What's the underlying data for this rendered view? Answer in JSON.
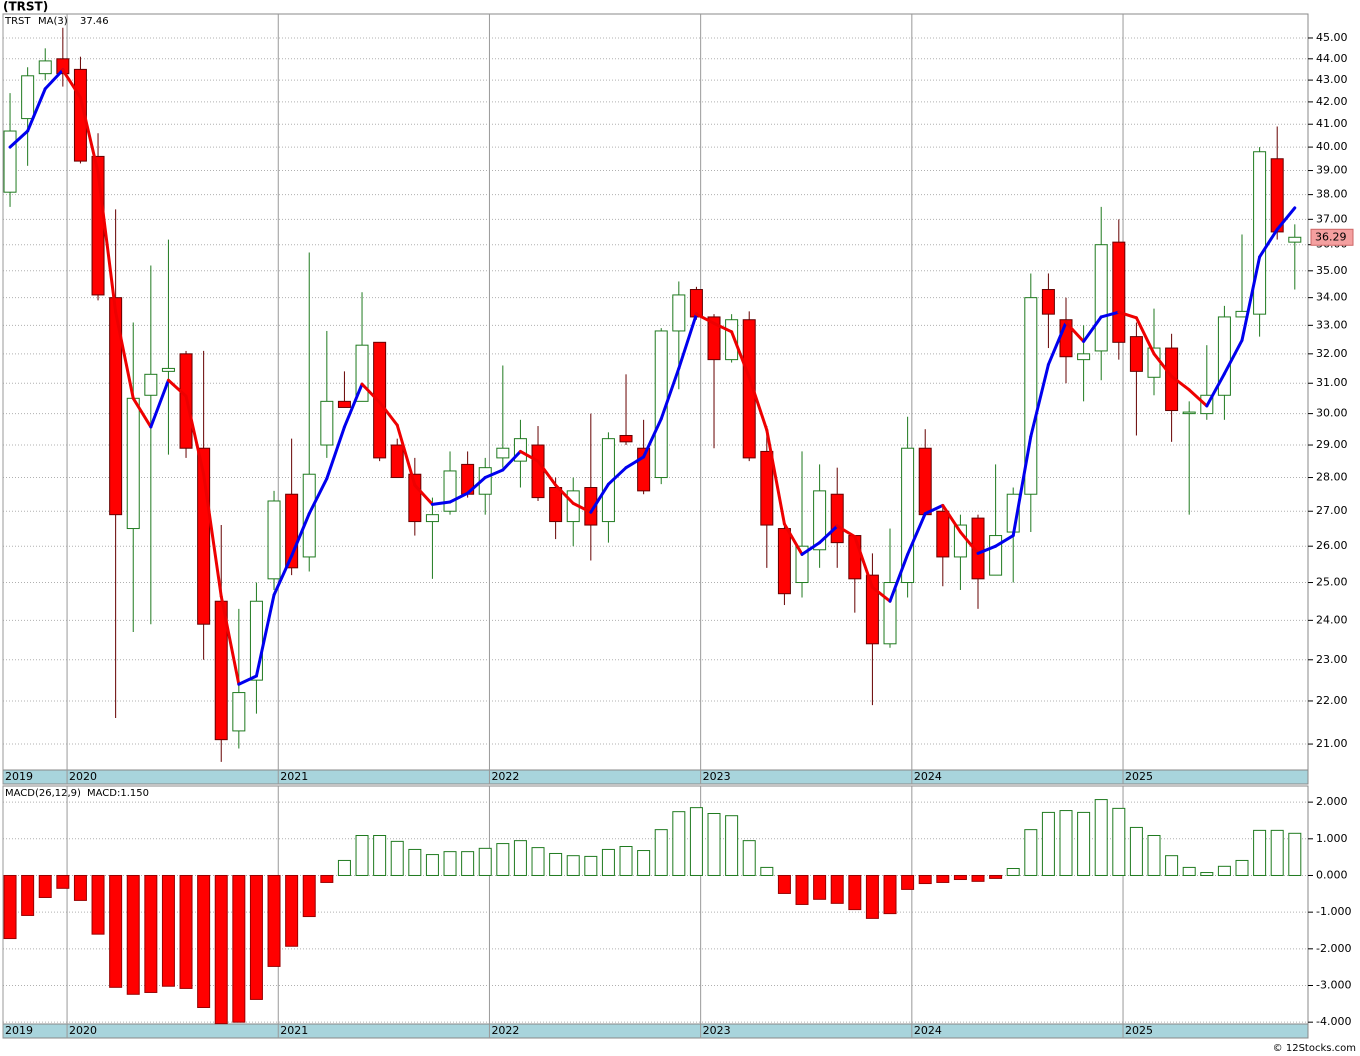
{
  "chart_data": [
    {
      "type": "candlestick",
      "title": "(TRST)",
      "legend_name": "TRST",
      "open": [
        38.1,
        41.25,
        43.3,
        44.0,
        43.5,
        39.6,
        34.0,
        26.5,
        30.6,
        31.4,
        32.0,
        28.9,
        24.5,
        21.3,
        22.5,
        25.1,
        27.5,
        25.7,
        29.0,
        30.4,
        30.4,
        32.4,
        29.0,
        28.1,
        26.7,
        27.0,
        28.4,
        27.5,
        28.6,
        28.5,
        29.0,
        27.7,
        26.7,
        27.7,
        26.7,
        29.3,
        28.9,
        28.0,
        32.8,
        34.3,
        33.3,
        31.8,
        33.2,
        28.8,
        26.5,
        25.0,
        25.9,
        27.5,
        26.3,
        25.2,
        23.4,
        25.0,
        28.9,
        27.0,
        25.7,
        26.8,
        25.2,
        26.4,
        27.5,
        34.3,
        33.2,
        31.8,
        32.1,
        36.1,
        32.6,
        31.2,
        32.2,
        30.0,
        30.0,
        30.6,
        33.3,
        33.4,
        39.5,
        36.1
      ],
      "high": [
        42.4,
        43.6,
        44.5,
        45.5,
        44.1,
        40.6,
        37.4,
        33.1,
        35.2,
        36.2,
        32.1,
        32.1,
        26.6,
        24.3,
        25.0,
        27.6,
        29.2,
        35.7,
        32.8,
        31.4,
        34.2,
        32.4,
        29.2,
        28.6,
        27.4,
        28.8,
        28.8,
        28.6,
        31.6,
        29.8,
        29.6,
        28.0,
        28.0,
        30.0,
        29.4,
        31.3,
        29.8,
        32.9,
        34.6,
        34.4,
        33.4,
        33.4,
        33.5,
        29.6,
        26.6,
        28.8,
        28.4,
        28.3,
        26.3,
        25.8,
        26.5,
        29.9,
        29.5,
        27.2,
        26.9,
        26.9,
        28.4,
        27.7,
        34.9,
        34.9,
        34.0,
        33.0,
        37.5,
        37.0,
        33.1,
        33.6,
        32.7,
        30.4,
        32.3,
        33.7,
        36.4,
        40.0,
        40.9,
        36.8
      ],
      "low": [
        37.5,
        39.2,
        43.0,
        42.7,
        39.3,
        33.9,
        21.6,
        23.7,
        23.9,
        28.7,
        28.6,
        23.0,
        20.6,
        20.9,
        21.7,
        24.8,
        25.2,
        25.3,
        28.6,
        30.2,
        30.4,
        28.5,
        28.0,
        26.3,
        25.1,
        26.9,
        27.4,
        26.9,
        28.3,
        27.7,
        27.3,
        26.2,
        26.0,
        25.6,
        26.1,
        29.0,
        27.5,
        27.8,
        30.8,
        33.2,
        28.9,
        31.7,
        28.5,
        25.4,
        24.4,
        24.6,
        25.4,
        25.4,
        24.2,
        21.9,
        23.3,
        24.6,
        26.9,
        24.9,
        24.8,
        24.3,
        25.2,
        25.0,
        26.4,
        32.2,
        31.0,
        30.4,
        31.1,
        31.8,
        29.3,
        30.6,
        29.1,
        26.9,
        29.8,
        29.8,
        33.3,
        32.6,
        36.2,
        34.3
      ],
      "close": [
        40.7,
        43.2,
        43.9,
        43.3,
        39.4,
        34.1,
        26.9,
        30.5,
        31.3,
        31.5,
        28.9,
        23.9,
        21.1,
        22.2,
        24.5,
        27.3,
        25.4,
        28.1,
        30.4,
        30.2,
        32.3,
        28.6,
        28.0,
        26.7,
        26.9,
        28.2,
        27.5,
        28.3,
        28.9,
        29.2,
        27.4,
        26.7,
        27.6,
        26.6,
        29.2,
        29.1,
        27.6,
        32.8,
        34.1,
        33.3,
        31.8,
        33.2,
        28.6,
        26.6,
        24.7,
        26.0,
        27.6,
        26.1,
        25.1,
        23.4,
        25.0,
        28.9,
        26.9,
        25.7,
        26.6,
        25.1,
        26.3,
        27.5,
        34.0,
        33.4,
        31.9,
        32.0,
        36.0,
        32.4,
        31.4,
        32.2,
        30.1,
        30.05,
        30.6,
        33.3,
        33.5,
        39.8,
        36.5,
        36.29
      ],
      "up_color": "#1f7a1f",
      "down_color": "#ff0000",
      "ma": {
        "name": "MA(3)",
        "up_color": "#0000ee",
        "down_color": "#ee0000",
        "values": [
          40.0,
          40.7,
          42.6,
          43.47,
          42.2,
          38.93,
          33.47,
          30.5,
          29.57,
          31.1,
          30.57,
          28.1,
          24.63,
          22.4,
          22.6,
          24.67,
          25.73,
          26.93,
          27.97,
          29.57,
          30.97,
          30.37,
          29.63,
          27.77,
          27.2,
          27.27,
          27.53,
          28.0,
          28.23,
          28.8,
          28.5,
          27.77,
          27.23,
          26.97,
          27.8,
          28.3,
          28.63,
          29.83,
          31.5,
          33.4,
          33.07,
          32.77,
          31.2,
          29.47,
          26.63,
          25.77,
          26.1,
          26.57,
          26.27,
          24.87,
          24.5,
          25.77,
          26.93,
          27.17,
          26.4,
          25.8,
          26.0,
          26.3,
          29.27,
          31.63,
          33.1,
          32.43,
          33.3,
          33.47,
          33.27,
          32.0,
          31.23,
          30.78,
          30.25,
          31.32,
          32.47,
          35.53,
          36.6,
          37.46
        ]
      },
      "log_scale": true,
      "grid": true,
      "ylim": [
        20.42,
        46.18
      ],
      "yticks": [
        {
          "value": 21,
          "label": "21.00"
        },
        {
          "value": 22,
          "label": "22.00"
        },
        {
          "value": 23,
          "label": "23.00"
        },
        {
          "value": 24,
          "label": "24.00"
        },
        {
          "value": 25,
          "label": "25.00"
        },
        {
          "value": 26,
          "label": "26.00"
        },
        {
          "value": 27,
          "label": "27.00"
        },
        {
          "value": 28,
          "label": "28.00"
        },
        {
          "value": 29,
          "label": "29.00"
        },
        {
          "value": 30,
          "label": "30.00"
        },
        {
          "value": 31,
          "label": "31.00"
        },
        {
          "value": 32,
          "label": "32.00"
        },
        {
          "value": 33,
          "label": "33.00"
        },
        {
          "value": 34,
          "label": "34.00"
        },
        {
          "value": 35,
          "label": "35.00"
        },
        {
          "value": 36,
          "label": "36.00"
        },
        {
          "value": 37,
          "label": "37.00"
        },
        {
          "value": 38,
          "label": "38.00"
        },
        {
          "value": 39,
          "label": "39.00"
        },
        {
          "value": 40,
          "label": "40.00"
        },
        {
          "value": 41,
          "label": "41.00"
        },
        {
          "value": 42,
          "label": "42.00"
        },
        {
          "value": 43,
          "label": "43.00"
        },
        {
          "value": 44,
          "label": "44.00"
        },
        {
          "value": 45,
          "label": "45.00"
        }
      ],
      "xlim": [
        -0.4,
        73.75
      ],
      "xticks": [
        {
          "value": -0.4,
          "label": "2019"
        },
        {
          "value": 3.24,
          "label": "2020"
        },
        {
          "value": 15.24,
          "label": "2021"
        },
        {
          "value": 27.24,
          "label": "2022"
        },
        {
          "value": 39.24,
          "label": "2023"
        },
        {
          "value": 51.24,
          "label": "2024"
        },
        {
          "value": 63.24,
          "label": "2025"
        }
      ]
    },
    {
      "type": "histogram",
      "title": "MACD(26,12,9)",
      "legend_value": "MACD:1.150",
      "values": [
        -1.72,
        -1.09,
        -0.6,
        -0.35,
        -0.68,
        -1.6,
        -3.05,
        -3.24,
        -3.19,
        -3.02,
        -3.08,
        -3.6,
        -4.04,
        -4.0,
        -3.38,
        -2.48,
        -1.93,
        -1.12,
        -0.19,
        0.41,
        1.09,
        1.09,
        0.93,
        0.71,
        0.57,
        0.65,
        0.65,
        0.74,
        0.87,
        0.95,
        0.76,
        0.6,
        0.54,
        0.52,
        0.71,
        0.79,
        0.68,
        1.25,
        1.74,
        1.85,
        1.69,
        1.63,
        0.95,
        0.22,
        -0.49,
        -0.79,
        -0.65,
        -0.76,
        -0.93,
        -1.17,
        -1.04,
        -0.38,
        -0.22,
        -0.19,
        -0.11,
        -0.16,
        -0.08,
        0.19,
        1.25,
        1.72,
        1.77,
        1.72,
        2.07,
        1.83,
        1.31,
        1.09,
        0.54,
        0.22,
        0.08,
        0.25,
        0.41,
        1.23,
        1.23,
        1.15
      ],
      "up_color": "#1f7a1f",
      "down_color": "#ff0000",
      "ylim": [
        -4.05,
        2.44
      ],
      "yticks": [
        {
          "value": 2,
          "label": "2.000"
        },
        {
          "value": 1,
          "label": "1.000"
        },
        {
          "value": 0,
          "label": "0.000"
        },
        {
          "value": -1,
          "label": "-1.000"
        },
        {
          "value": -2,
          "label": "-2.000"
        },
        {
          "value": -3,
          "label": "-3.000"
        },
        {
          "value": -4,
          "label": "-4.000"
        }
      ],
      "xlim": [
        -0.4,
        73.75
      ],
      "xticks": [
        {
          "value": -0.4,
          "label": "2019"
        },
        {
          "value": 3.24,
          "label": "2020"
        },
        {
          "value": 15.24,
          "label": "2021"
        },
        {
          "value": 27.24,
          "label": "2022"
        },
        {
          "value": 39.24,
          "label": "2023"
        },
        {
          "value": 51.24,
          "label": "2024"
        },
        {
          "value": 63.24,
          "label": "2025"
        }
      ]
    }
  ],
  "footer": "© 12Stocks.com"
}
